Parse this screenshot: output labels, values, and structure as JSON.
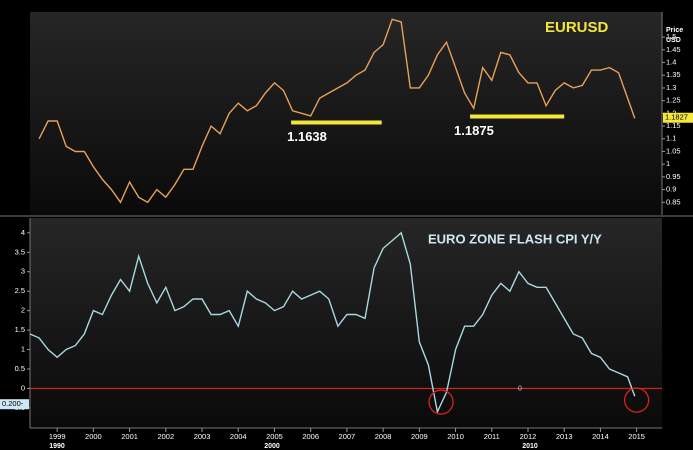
{
  "chart_data": [
    {
      "type": "line",
      "title": "EURUSD",
      "axis_title": "Price",
      "axis_unit": "USD",
      "color": "#e8a058",
      "x": [
        1998.5,
        1998.75,
        1999.0,
        1999.25,
        1999.5,
        1999.75,
        2000.0,
        2000.25,
        2000.5,
        2000.75,
        2001.0,
        2001.25,
        2001.5,
        2001.75,
        2002.0,
        2002.25,
        2002.5,
        2002.75,
        2003.0,
        2003.25,
        2003.5,
        2003.75,
        2004.0,
        2004.25,
        2004.5,
        2004.75,
        2005.0,
        2005.25,
        2005.5,
        2005.75,
        2006.0,
        2006.25,
        2006.5,
        2006.75,
        2007.0,
        2007.25,
        2007.5,
        2007.75,
        2008.0,
        2008.25,
        2008.5,
        2008.75,
        2009.0,
        2009.25,
        2009.5,
        2009.75,
        2010.0,
        2010.25,
        2010.5,
        2010.75,
        2011.0,
        2011.25,
        2011.5,
        2011.75,
        2012.0,
        2012.25,
        2012.5,
        2012.75,
        2013.0,
        2013.25,
        2013.5,
        2013.75,
        2014.0,
        2014.25,
        2014.5,
        2014.75,
        2014.95
      ],
      "values": [
        1.1,
        1.17,
        1.17,
        1.07,
        1.05,
        1.05,
        0.99,
        0.94,
        0.9,
        0.85,
        0.93,
        0.87,
        0.85,
        0.9,
        0.87,
        0.92,
        0.98,
        0.98,
        1.07,
        1.15,
        1.12,
        1.2,
        1.24,
        1.21,
        1.23,
        1.28,
        1.32,
        1.29,
        1.21,
        1.2,
        1.19,
        1.26,
        1.28,
        1.3,
        1.32,
        1.35,
        1.37,
        1.44,
        1.47,
        1.57,
        1.56,
        1.3,
        1.3,
        1.35,
        1.43,
        1.48,
        1.38,
        1.28,
        1.22,
        1.38,
        1.33,
        1.44,
        1.43,
        1.36,
        1.32,
        1.32,
        1.23,
        1.29,
        1.32,
        1.3,
        1.31,
        1.37,
        1.37,
        1.38,
        1.36,
        1.26,
        1.18
      ],
      "xlim": [
        1998.25,
        2015.7
      ],
      "ylim": [
        0.8,
        1.587
      ],
      "yticks": [
        1.5,
        1.45,
        1.4,
        1.35,
        1.3,
        1.25,
        1.2,
        1.15,
        1.1,
        1.05,
        1,
        0.95,
        0.9,
        0.85
      ],
      "last_value": {
        "value": 1.1827,
        "label": "1.1827"
      },
      "annotations": [
        {
          "label": "1.1638",
          "value": 1.1638,
          "x": [
            2005.46,
            2007.96
          ],
          "color": "#f5e63c"
        },
        {
          "label": "1.1875",
          "value": 1.1875,
          "x": [
            2010.4,
            2013.0
          ],
          "color": "#f5e63c"
        }
      ]
    },
    {
      "type": "line",
      "title": "EURO ZONE FLASH CPI Y/Y",
      "color": "#a8d8e0",
      "x": [
        1998.25,
        1998.5,
        1998.75,
        1999.0,
        1999.25,
        1999.5,
        1999.75,
        2000.0,
        2000.25,
        2000.5,
        2000.75,
        2001.0,
        2001.25,
        2001.5,
        2001.75,
        2002.0,
        2002.25,
        2002.5,
        2002.75,
        2003.0,
        2003.25,
        2003.5,
        2003.75,
        2004.0,
        2004.25,
        2004.5,
        2004.75,
        2005.0,
        2005.25,
        2005.5,
        2005.75,
        2006.0,
        2006.25,
        2006.5,
        2006.75,
        2007.0,
        2007.25,
        2007.5,
        2007.75,
        2008.0,
        2008.25,
        2008.5,
        2008.75,
        2009.0,
        2009.25,
        2009.5,
        2009.75,
        2010.0,
        2010.25,
        2010.5,
        2010.75,
        2011.0,
        2011.25,
        2011.5,
        2011.75,
        2012.0,
        2012.25,
        2012.5,
        2012.75,
        2013.0,
        2013.25,
        2013.5,
        2013.75,
        2014.0,
        2014.25,
        2014.5,
        2014.75,
        2014.95
      ],
      "values": [
        1.4,
        1.3,
        1.0,
        0.8,
        1.0,
        1.1,
        1.4,
        2.0,
        1.9,
        2.4,
        2.8,
        2.5,
        3.4,
        2.7,
        2.2,
        2.6,
        2.0,
        2.1,
        2.3,
        2.3,
        1.9,
        1.9,
        2.0,
        1.6,
        2.5,
        2.3,
        2.2,
        2.0,
        2.1,
        2.5,
        2.3,
        2.4,
        2.5,
        2.3,
        1.6,
        1.9,
        1.9,
        1.8,
        3.1,
        3.6,
        3.8,
        4.0,
        3.2,
        1.2,
        0.6,
        -0.6,
        -0.1,
        1.0,
        1.6,
        1.6,
        1.9,
        2.4,
        2.7,
        2.5,
        3.0,
        2.7,
        2.6,
        2.6,
        2.2,
        1.8,
        1.4,
        1.3,
        0.9,
        0.8,
        0.5,
        0.4,
        0.3,
        -0.2
      ],
      "xlim": [
        1998.25,
        2015.7
      ],
      "ylim": [
        -0.94,
        4.33
      ],
      "yticks": [
        4,
        3.5,
        3,
        2.5,
        2,
        1.5,
        1,
        0.5,
        0,
        -0.5
      ],
      "xticks": [
        1999,
        2000,
        2001,
        2002,
        2003,
        2004,
        2005,
        2006,
        2007,
        2008,
        2009,
        2010,
        2011,
        2012,
        2013,
        2014,
        2015
      ],
      "decade_labels": [
        "1990",
        "2000",
        "2010"
      ],
      "last_value": {
        "value": -0.2,
        "label": "0.200-"
      },
      "zero_line": {
        "value": 0,
        "label": "0",
        "color": "#e0201c"
      },
      "highlights": [
        {
          "x": 2009.6,
          "y": -0.35
        },
        {
          "x": 2015.0,
          "y": -0.3
        }
      ]
    }
  ]
}
